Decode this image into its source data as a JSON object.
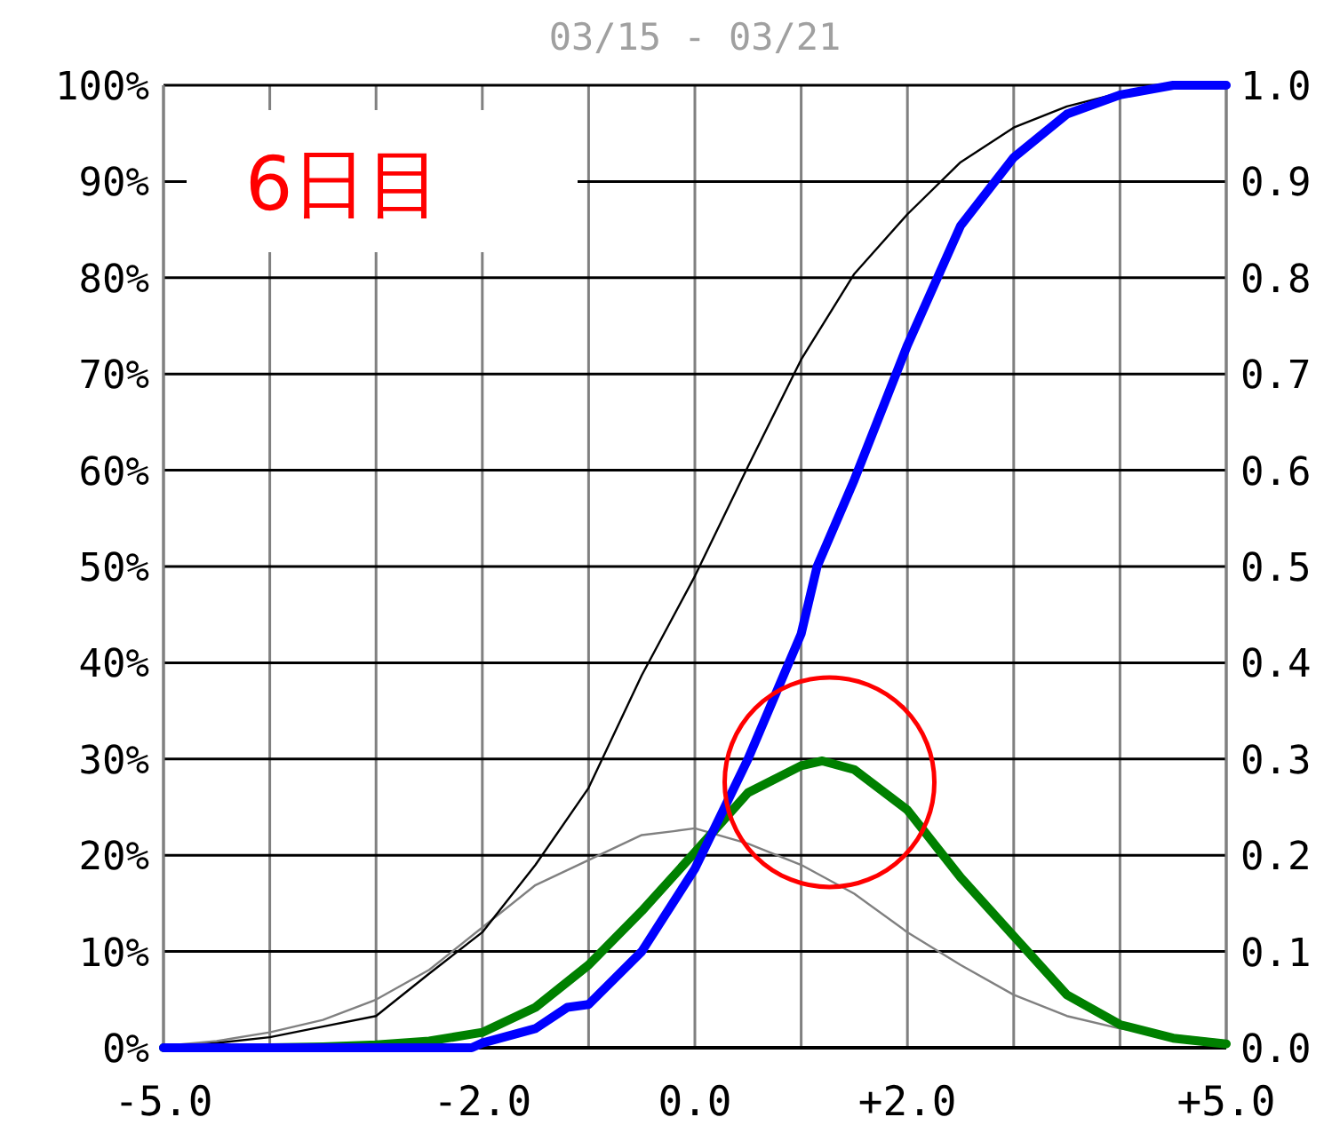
{
  "chart_data": {
    "type": "line",
    "title": "03/15 - 03/21",
    "annotations": [
      "6日目"
    ],
    "xlim": [
      -5,
      5
    ],
    "xticks": [
      {
        "value": -5,
        "label": "-5.0"
      },
      {
        "value": -4,
        "label": null
      },
      {
        "value": -3,
        "label": null
      },
      {
        "value": -2,
        "label": "-2.0"
      },
      {
        "value": -1,
        "label": null
      },
      {
        "value": 0,
        "label": "0.0"
      },
      {
        "value": 1,
        "label": null
      },
      {
        "value": 2,
        "label": "+2.0"
      },
      {
        "value": 3,
        "label": null
      },
      {
        "value": 4,
        "label": null
      },
      {
        "value": 5,
        "label": "+5.0"
      }
    ],
    "ylim": [
      0,
      100
    ],
    "yticks": [
      {
        "value": 0,
        "label": "0%"
      },
      {
        "value": 10,
        "label": "10%"
      },
      {
        "value": 20,
        "label": "20%"
      },
      {
        "value": 30,
        "label": "30%"
      },
      {
        "value": 40,
        "label": "40%"
      },
      {
        "value": 50,
        "label": "50%"
      },
      {
        "value": 60,
        "label": "60%"
      },
      {
        "value": 70,
        "label": "70%"
      },
      {
        "value": 80,
        "label": "80%"
      },
      {
        "value": 90,
        "label": "90%"
      },
      {
        "value": 100,
        "label": "100%"
      }
    ],
    "y2lim": [
      0,
      1
    ],
    "y2ticks": [
      {
        "value": 0,
        "label": "0.0"
      },
      {
        "value": 0.1,
        "label": "0.1"
      },
      {
        "value": 0.2,
        "label": "0.2"
      },
      {
        "value": 0.3,
        "label": "0.3"
      },
      {
        "value": 0.4,
        "label": "0.4"
      },
      {
        "value": 0.5,
        "label": "0.5"
      },
      {
        "value": 0.6,
        "label": "0.6"
      },
      {
        "value": 0.7,
        "label": "0.7"
      },
      {
        "value": 0.8,
        "label": "0.8"
      },
      {
        "value": 0.9,
        "label": "0.9"
      },
      {
        "value": 1,
        "label": "1.0"
      }
    ],
    "grid": true,
    "series": [
      {
        "color": "#808080",
        "axis": "y2",
        "x": [
          -5,
          -4.5,
          -4,
          -3.5,
          -3,
          -2.5,
          -2,
          -1.5,
          -1,
          -0.5,
          -0.2,
          0,
          0.5,
          1,
          1.5,
          2,
          2.5,
          3,
          3.5,
          4,
          4.5,
          5
        ],
        "values": [
          0.002,
          0.007,
          0.016,
          0.029,
          0.05,
          0.081,
          0.125,
          0.169,
          0.195,
          0.221,
          0.225,
          0.228,
          0.212,
          0.19,
          0.16,
          0.12,
          0.086,
          0.055,
          0.033,
          0.02,
          0.013,
          0.007
        ]
      },
      {
        "color": "#000000",
        "x": [
          -5,
          -4.5,
          -4,
          -3.5,
          -3,
          -2.5,
          -2,
          -1.5,
          -1,
          -0.5,
          0,
          0.5,
          1,
          1.5,
          2,
          2.5,
          3,
          3.5,
          4
        ],
        "values": [
          0,
          0.5,
          1.1,
          2.2,
          3.3,
          7.7,
          12,
          19,
          27,
          38.7,
          49,
          60.4,
          71.5,
          80.4,
          86.6,
          92,
          95.6,
          97.8,
          99.2
        ]
      },
      {
        "color": "#008000",
        "axis": "y2",
        "x": [
          -5,
          -4,
          -3.5,
          -3,
          -2.5,
          -2,
          -1.5,
          -1,
          -0.5,
          0,
          0.5,
          1,
          1.2,
          1.5,
          2,
          2.5,
          3,
          3.5,
          4,
          4.5,
          5
        ],
        "values": [
          0,
          0,
          0.001,
          0.003,
          0.007,
          0.016,
          0.042,
          0.086,
          0.142,
          0.203,
          0.265,
          0.293,
          0.298,
          0.289,
          0.247,
          0.177,
          0.116,
          0.055,
          0.024,
          0.01,
          0.004
        ]
      },
      {
        "color": "#0000ff",
        "x": [
          -5,
          -2.1,
          -2,
          -1.5,
          -1.2,
          -1,
          -0.5,
          0,
          0.5,
          1,
          1.15,
          1.5,
          2,
          2.5,
          3,
          3.5,
          4,
          4.5,
          5
        ],
        "values": [
          0,
          0,
          0.5,
          2,
          4.2,
          4.5,
          10,
          18.6,
          30,
          43,
          50,
          59,
          73,
          85.4,
          92.5,
          97,
          99,
          100,
          100
        ]
      }
    ]
  }
}
